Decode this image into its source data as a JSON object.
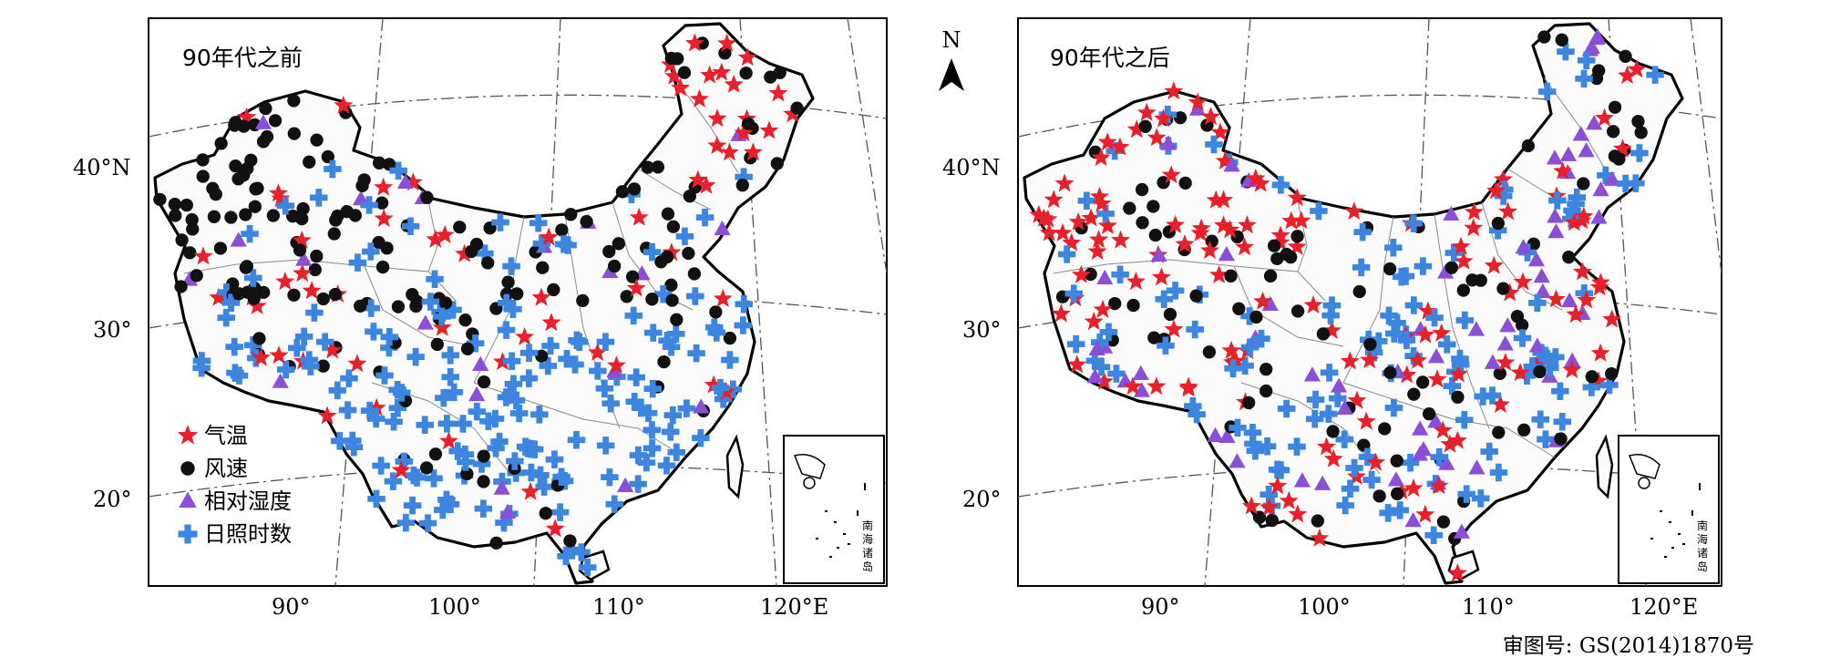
{
  "maps": [
    {
      "title": "90年代之前",
      "lat_labels": [
        "40°N",
        "30°",
        "20°"
      ],
      "lon_labels": [
        "90°",
        "100°",
        "110°",
        "120°E"
      ]
    },
    {
      "title": "90年代之后",
      "lat_labels": [
        "40°N",
        "30°",
        "20°"
      ],
      "lon_labels": [
        "90°",
        "100°",
        "110°",
        "120°E"
      ]
    }
  ],
  "north_arrow": "N",
  "legend": [
    {
      "label": "气温",
      "symbol": "star",
      "color": "#e8202a"
    },
    {
      "label": "风速",
      "symbol": "circle",
      "color": "#111111"
    },
    {
      "label": "相对湿度",
      "symbol": "triangle",
      "color": "#8a4fd6"
    },
    {
      "label": "日照时数",
      "symbol": "plus",
      "color": "#3d86e0"
    }
  ],
  "inset_label": "南海诸岛",
  "footnote": "审图号: GS(2014)1870号"
}
